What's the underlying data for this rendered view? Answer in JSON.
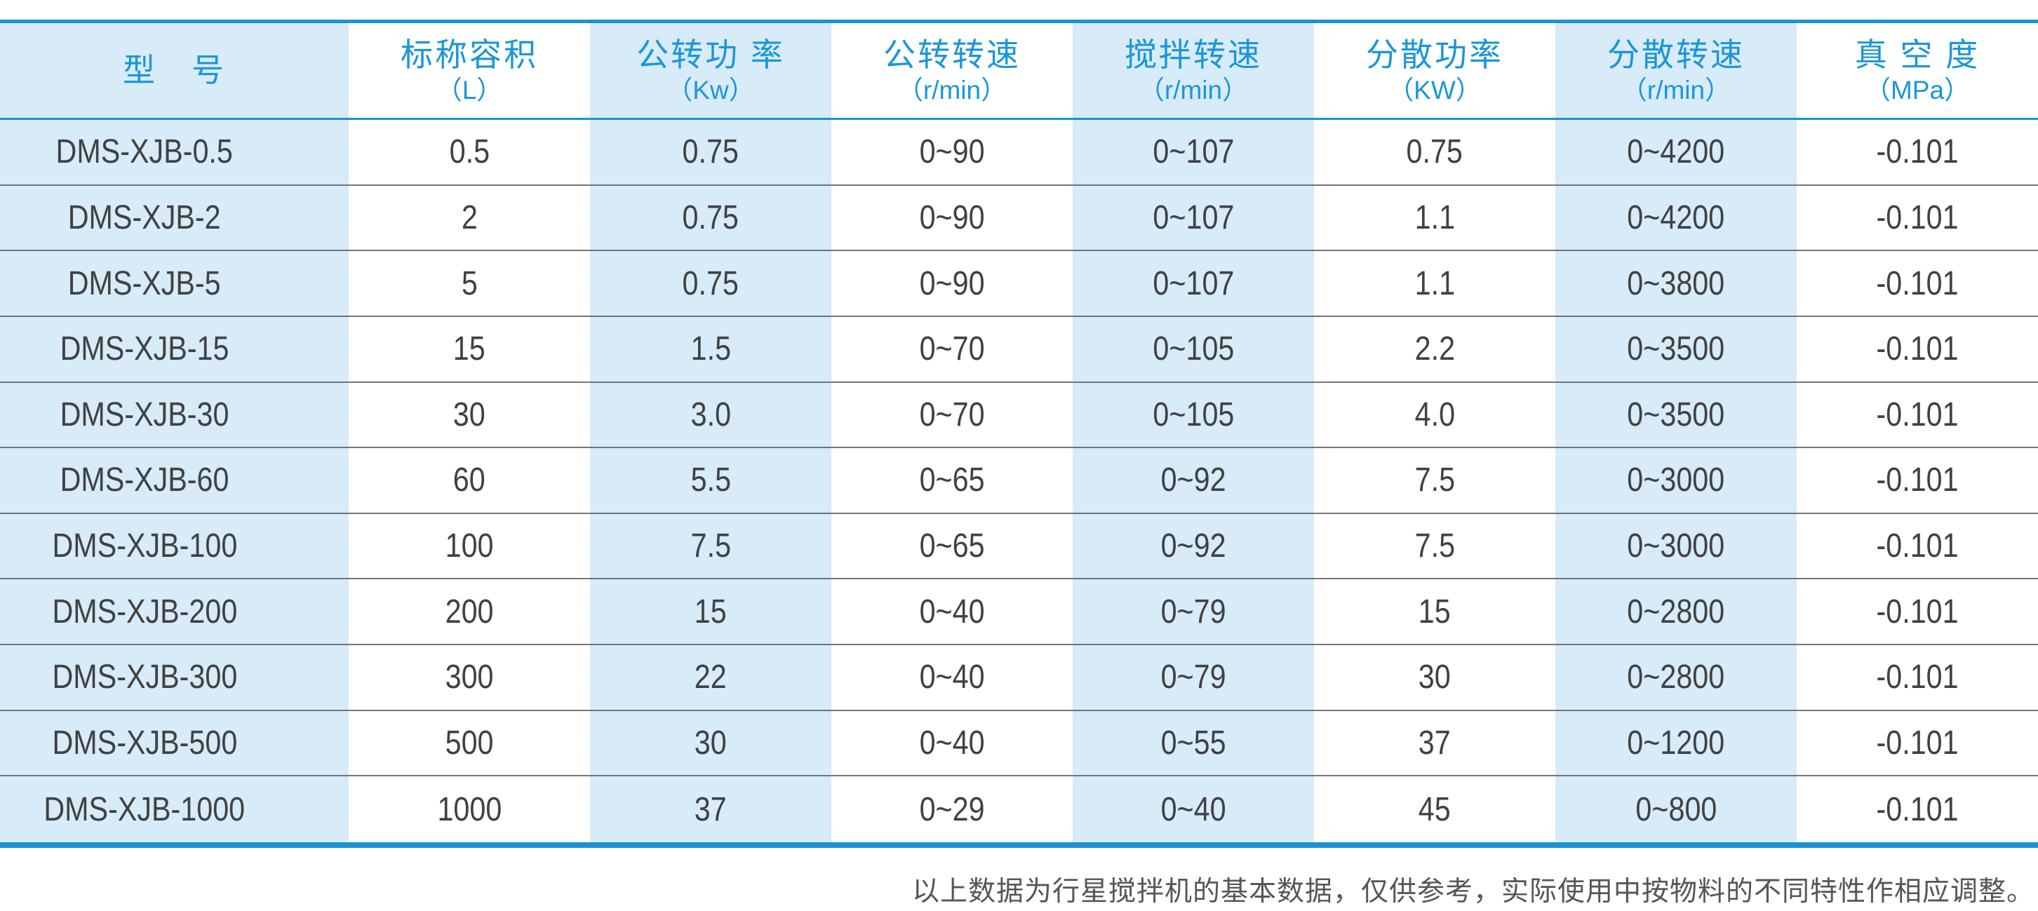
{
  "table": {
    "columns": [
      {
        "title": "型　号",
        "unit": ""
      },
      {
        "title": "标称容积",
        "unit": "（L）"
      },
      {
        "title": "公转功 率",
        "unit": "（Kw）"
      },
      {
        "title": "公转转速",
        "unit": "（r/min）"
      },
      {
        "title": "搅拌转速",
        "unit": "（r/min）"
      },
      {
        "title": "分散功率",
        "unit": "（KW）"
      },
      {
        "title": "分散转速",
        "unit": "（r/min）"
      },
      {
        "title": "真 空 度",
        "unit": "（MPa）"
      }
    ],
    "rows": [
      [
        "DMS-XJB-0.5",
        "0.5",
        "0.75",
        "0~90",
        "0~107",
        "0.75",
        "0~4200",
        "-0.101"
      ],
      [
        "DMS-XJB-2",
        "2",
        "0.75",
        "0~90",
        "0~107",
        "1.1",
        "0~4200",
        "-0.101"
      ],
      [
        "DMS-XJB-5",
        "5",
        "0.75",
        "0~90",
        "0~107",
        "1.1",
        "0~3800",
        "-0.101"
      ],
      [
        "DMS-XJB-15",
        "15",
        "1.5",
        "0~70",
        "0~105",
        "2.2",
        "0~3500",
        "-0.101"
      ],
      [
        "DMS-XJB-30",
        "30",
        "3.0",
        "0~70",
        "0~105",
        "4.0",
        "0~3500",
        "-0.101"
      ],
      [
        "DMS-XJB-60",
        "60",
        "5.5",
        "0~65",
        "0~92",
        "7.5",
        "0~3000",
        "-0.101"
      ],
      [
        "DMS-XJB-100",
        "100",
        "7.5",
        "0~65",
        "0~92",
        "7.5",
        "0~3000",
        "-0.101"
      ],
      [
        "DMS-XJB-200",
        "200",
        "15",
        "0~40",
        "0~79",
        "15",
        "0~2800",
        "-0.101"
      ],
      [
        "DMS-XJB-300",
        "300",
        "22",
        "0~40",
        "0~79",
        "30",
        "0~2800",
        "-0.101"
      ],
      [
        "DMS-XJB-500",
        "500",
        "30",
        "0~40",
        "0~55",
        "37",
        "0~1200",
        "-0.101"
      ],
      [
        "DMS-XJB-1000",
        "1000",
        "37",
        "0~29",
        "0~40",
        "45",
        "0~800",
        "-0.101"
      ]
    ]
  },
  "footnote": "以上数据为行星搅拌机的基本数据，仅供参考，实际使用中按物料的不同特性作相应调整。",
  "colors": {
    "accent_blue": "#1a92d5",
    "header_text_blue": "#1b96d8",
    "stripe_blue": "#d7ebf8",
    "body_text": "#414141",
    "row_separator": "#747474",
    "footnote_text": "#565656"
  }
}
